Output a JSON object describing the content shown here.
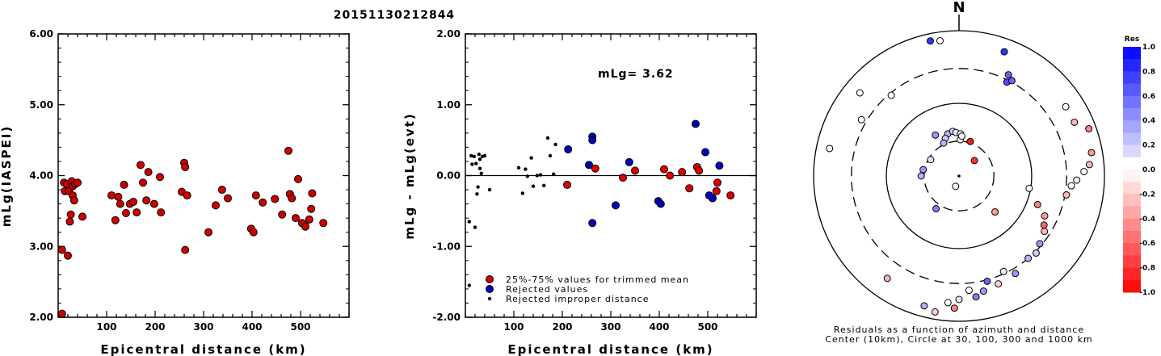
{
  "title": "20151130212844",
  "chart_data": [
    {
      "type": "scatter",
      "ylabel": "mLg(IASPEI)",
      "xlabel": "Epicentral distance (km)",
      "xlim": [
        0,
        600
      ],
      "ylim": [
        2.0,
        6.0
      ],
      "yticks": [
        "6.00",
        "5.00",
        "4.00",
        "3.00",
        "2.00"
      ],
      "xticks": [
        "100",
        "200",
        "300",
        "400",
        "500"
      ],
      "points": [
        [
          8,
          2.05
        ],
        [
          8,
          2.95
        ],
        [
          12,
          3.9
        ],
        [
          14,
          3.78
        ],
        [
          18,
          3.88
        ],
        [
          20,
          2.87
        ],
        [
          22,
          3.78
        ],
        [
          24,
          3.35
        ],
        [
          26,
          3.45
        ],
        [
          28,
          3.92
        ],
        [
          30,
          3.72
        ],
        [
          30,
          3.85
        ],
        [
          33,
          3.65
        ],
        [
          35,
          3.88
        ],
        [
          40,
          3.9
        ],
        [
          50,
          3.42
        ],
        [
          110,
          3.72
        ],
        [
          118,
          3.37
        ],
        [
          124,
          3.7
        ],
        [
          128,
          3.6
        ],
        [
          136,
          3.87
        ],
        [
          140,
          3.47
        ],
        [
          148,
          3.6
        ],
        [
          155,
          3.63
        ],
        [
          162,
          3.48
        ],
        [
          170,
          4.15
        ],
        [
          175,
          3.9
        ],
        [
          182,
          3.65
        ],
        [
          186,
          4.05
        ],
        [
          198,
          3.6
        ],
        [
          210,
          3.98
        ],
        [
          212,
          3.48
        ],
        [
          255,
          3.77
        ],
        [
          260,
          4.18
        ],
        [
          262,
          4.12
        ],
        [
          262,
          2.95
        ],
        [
          266,
          3.72
        ],
        [
          310,
          3.2
        ],
        [
          325,
          3.58
        ],
        [
          338,
          3.8
        ],
        [
          350,
          3.68
        ],
        [
          398,
          3.25
        ],
        [
          403,
          3.2
        ],
        [
          408,
          3.72
        ],
        [
          422,
          3.62
        ],
        [
          447,
          3.67
        ],
        [
          462,
          3.45
        ],
        [
          475,
          4.35
        ],
        [
          478,
          3.74
        ],
        [
          482,
          3.68
        ],
        [
          490,
          3.4
        ],
        [
          495,
          3.95
        ],
        [
          503,
          3.33
        ],
        [
          510,
          3.28
        ],
        [
          518,
          3.38
        ],
        [
          522,
          3.53
        ],
        [
          524,
          3.75
        ],
        [
          547,
          3.33
        ]
      ]
    },
    {
      "type": "scatter",
      "ylabel": "mLg - mLg(evt)",
      "xlabel": "Epicentral distance (km)",
      "xlim": [
        0,
        600
      ],
      "ylim": [
        -2.0,
        2.0
      ],
      "yticks": [
        "2.00",
        "1.00",
        "0.00",
        "-1.00",
        "-2.00"
      ],
      "xticks": [
        "100",
        "200",
        "300",
        "400",
        "500"
      ],
      "annotation": "mLg= 3.62",
      "legend": [
        "25%-75% values for trimmed mean",
        "Rejected values",
        "Rejected improper distance"
      ],
      "series": [
        {
          "name": "25%-75% values for trimmed mean",
          "color": "#e00000",
          "points": [
            [
              210,
              -0.13
            ],
            [
              268,
              0.1
            ],
            [
              325,
              -0.03
            ],
            [
              350,
              0.07
            ],
            [
              410,
              0.09
            ],
            [
              422,
              0.0
            ],
            [
              447,
              0.05
            ],
            [
              462,
              -0.18
            ],
            [
              478,
              0.12
            ],
            [
              482,
              0.07
            ],
            [
              518,
              -0.22
            ],
            [
              520,
              -0.1
            ],
            [
              547,
              -0.28
            ]
          ]
        },
        {
          "name": "Rejected values",
          "color": "#0000c0",
          "points": [
            [
              212,
              0.37
            ],
            [
              255,
              0.15
            ],
            [
              262,
              0.55
            ],
            [
              262,
              0.5
            ],
            [
              262,
              -0.67
            ],
            [
              310,
              -0.42
            ],
            [
              338,
              0.19
            ],
            [
              398,
              -0.36
            ],
            [
              403,
              -0.4
            ],
            [
              475,
              0.73
            ],
            [
              495,
              0.33
            ],
            [
              503,
              -0.28
            ],
            [
              510,
              -0.32
            ],
            [
              524,
              0.14
            ]
          ]
        },
        {
          "name": "Rejected improper distance",
          "color": "#000000",
          "points": [
            [
              8,
              -1.55
            ],
            [
              8,
              -0.65
            ],
            [
              12,
              0.28
            ],
            [
              14,
              0.16
            ],
            [
              18,
              0.27
            ],
            [
              20,
              -0.73
            ],
            [
              22,
              0.17
            ],
            [
              24,
              -0.26
            ],
            [
              26,
              -0.16
            ],
            [
              28,
              0.3
            ],
            [
              30,
              0.1
            ],
            [
              30,
              0.23
            ],
            [
              33,
              0.03
            ],
            [
              35,
              0.27
            ],
            [
              40,
              0.28
            ],
            [
              50,
              -0.2
            ],
            [
              110,
              0.11
            ],
            [
              118,
              -0.25
            ],
            [
              124,
              0.09
            ],
            [
              128,
              -0.01
            ],
            [
              136,
              0.25
            ],
            [
              140,
              -0.15
            ],
            [
              148,
              0.0
            ],
            [
              155,
              0.01
            ],
            [
              162,
              -0.14
            ],
            [
              170,
              0.53
            ],
            [
              175,
              0.28
            ],
            [
              182,
              0.02
            ],
            [
              186,
              0.44
            ]
          ]
        }
      ]
    },
    {
      "type": "polar-scatter",
      "north_label": "N",
      "caption1": "Residuals as a function of azimuth and distance",
      "caption2": "Center (10km), Circle at 30, 100, 300 and 1000 km",
      "colorbar": {
        "label": "Res",
        "ticks": [
          "1.0",
          "0.8",
          "0.6",
          "0.4",
          "0.2",
          "0.0",
          "-0.2",
          "-0.4",
          "-0.6",
          "-0.8",
          "-1.0"
        ]
      },
      "points": [
        [
          2,
          0.5,
          0.0
        ],
        [
          198,
          0.15,
          0.0
        ],
        [
          45,
          0.3,
          -0.8
        ],
        [
          330,
          0.65,
          0.4
        ],
        [
          345,
          0.6,
          0.3
        ],
        [
          352,
          0.62,
          0.2
        ],
        [
          356,
          0.6,
          0.1
        ],
        [
          2,
          0.58,
          0.0
        ],
        [
          4,
          0.55,
          0.0
        ],
        [
          18,
          0.5,
          -0.9
        ],
        [
          340,
          0.55,
          0.2
        ],
        [
          335,
          0.5,
          0.3
        ],
        [
          300,
          0.45,
          0.1
        ],
        [
          280,
          0.5,
          0.4
        ],
        [
          270,
          0.52,
          0.3
        ],
        [
          215,
          0.55,
          0.5
        ],
        [
          135,
          0.7,
          -0.4
        ],
        [
          100,
          0.98,
          0.0
        ],
        [
          110,
          1.15,
          -0.5
        ],
        [
          115,
          1.3,
          -0.4
        ],
        [
          120,
          1.35,
          -0.6
        ],
        [
          123,
          1.4,
          -0.3
        ],
        [
          130,
          1.45,
          0.4
        ],
        [
          135,
          1.5,
          0.2
        ],
        [
          140,
          1.48,
          0.3
        ],
        [
          150,
          1.55,
          0.4
        ],
        [
          155,
          1.45,
          0.1
        ],
        [
          160,
          1.58,
          -0.2
        ],
        [
          165,
          1.5,
          0.6
        ],
        [
          168,
          1.62,
          0.4
        ],
        [
          172,
          1.68,
          0.5
        ],
        [
          175,
          1.58,
          0.0
        ],
        [
          180,
          1.7,
          0.1
        ],
        [
          182,
          1.82,
          -0.5
        ],
        [
          185,
          1.75,
          0.0
        ],
        [
          190,
          1.9,
          -0.2
        ],
        [
          195,
          1.85,
          0.3
        ],
        [
          215,
          1.72,
          -0.3
        ],
        [
          100,
          1.5,
          -0.3
        ],
        [
          95,
          1.55,
          0.0
        ],
        [
          92,
          1.62,
          -0.1
        ],
        [
          88,
          1.72,
          0.0
        ],
        [
          85,
          1.8,
          -0.3
        ],
        [
          80,
          1.85,
          -0.4
        ],
        [
          70,
          1.9,
          -0.5
        ],
        [
          65,
          1.75,
          -0.3
        ],
        [
          57,
          1.75,
          0.0
        ],
        [
          20,
          1.82,
          0.8
        ],
        [
          348,
          1.9,
          0.8
        ],
        [
          352,
          1.88,
          0.0
        ],
        [
          310,
          1.78,
          0.0
        ],
        [
          300,
          1.55,
          0.0
        ],
        [
          282,
          1.82,
          0.0
        ],
        [
          27,
          1.45,
          0.7
        ],
        [
          29,
          1.5,
          0.6
        ],
        [
          26,
          1.55,
          0.6
        ],
        [
          320,
          1.45,
          0.0
        ]
      ]
    }
  ]
}
